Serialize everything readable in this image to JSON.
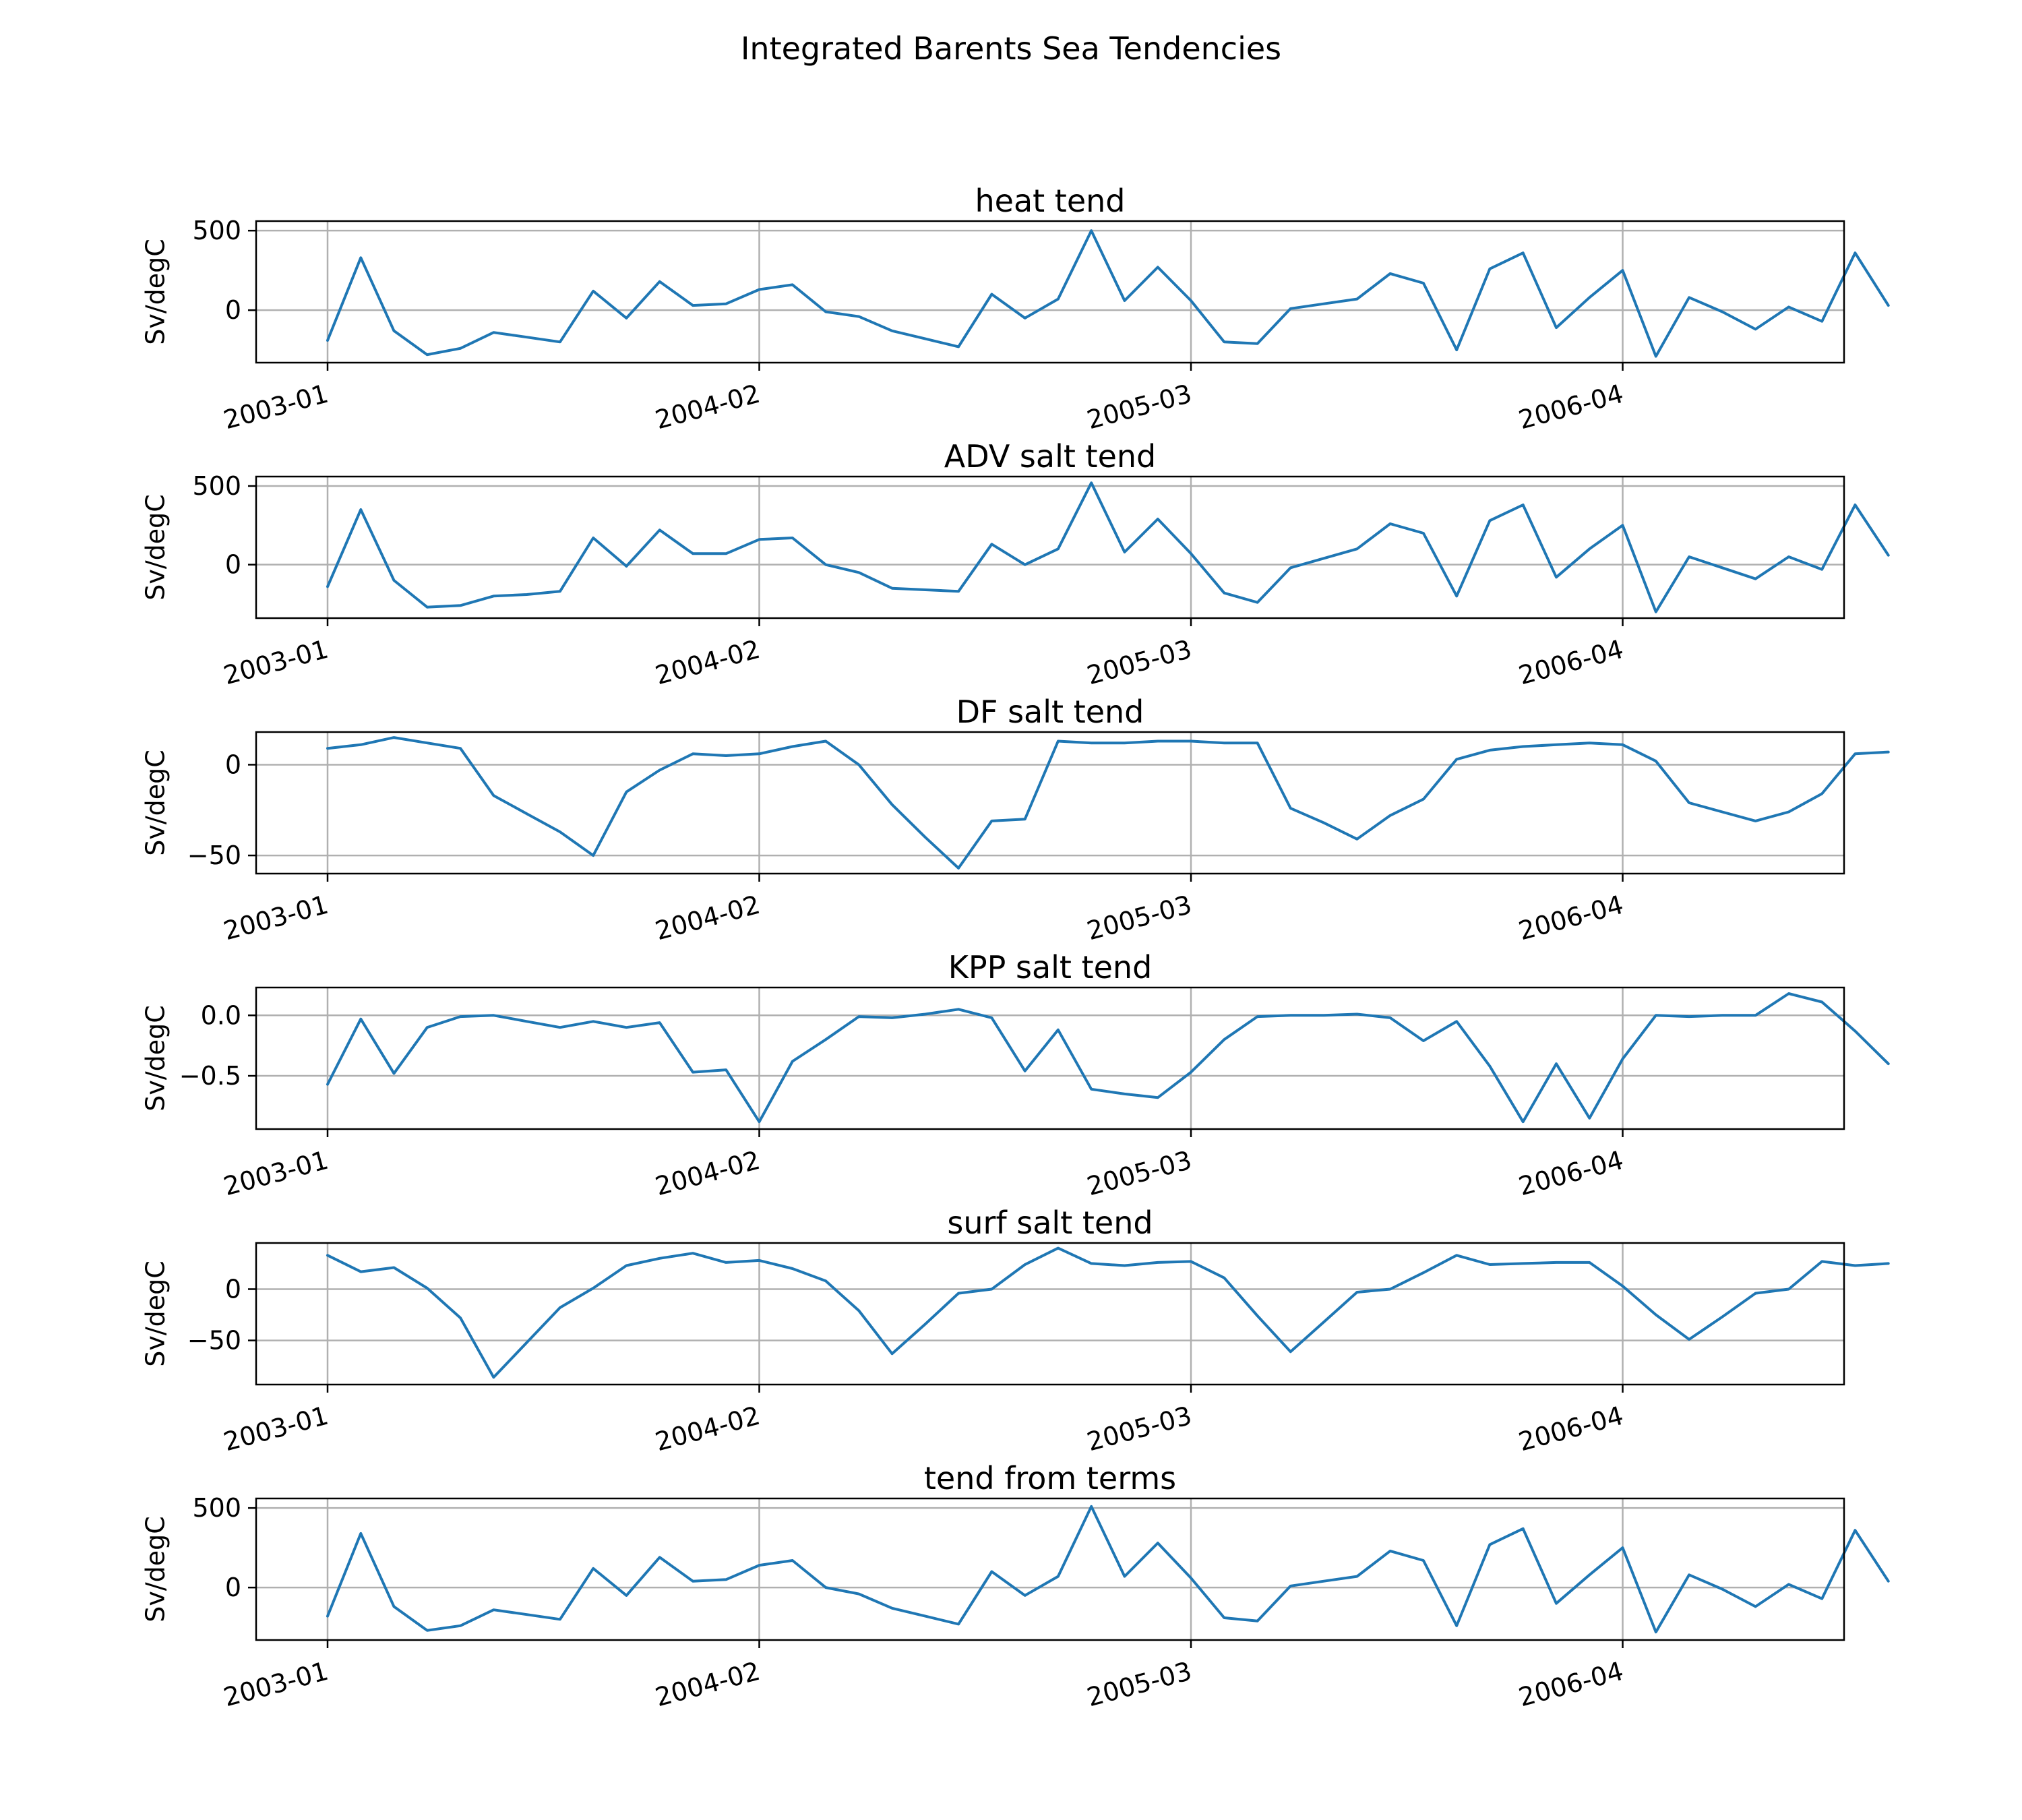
{
  "figure": {
    "title": "Integrated Barents Sea Tendencies"
  },
  "style": {
    "line_color": "#1f77b4",
    "grid_color": "#b0b0b0",
    "frame_color": "#000000",
    "background": "#ffffff"
  },
  "x_ticks": [
    "2003-01",
    "2004-02",
    "2005-03",
    "2006-04"
  ],
  "chart_data": [
    {
      "type": "line",
      "title": "heat tend",
      "xlabel": "",
      "ylabel": "Sv/degC",
      "grid": true,
      "x": [
        "2003-01",
        "2003-02",
        "2003-03",
        "2003-04",
        "2003-05",
        "2003-06",
        "2003-07",
        "2003-08",
        "2003-09",
        "2003-10",
        "2003-11",
        "2003-12",
        "2004-01",
        "2004-02",
        "2004-03",
        "2004-04",
        "2004-05",
        "2004-06",
        "2004-07",
        "2004-08",
        "2004-09",
        "2004-10",
        "2004-11",
        "2004-12",
        "2005-01",
        "2005-02",
        "2005-03",
        "2005-04",
        "2005-05",
        "2005-06",
        "2005-07",
        "2005-08",
        "2005-09",
        "2005-10",
        "2005-11",
        "2005-12",
        "2006-01",
        "2006-02",
        "2006-03",
        "2006-04",
        "2006-05",
        "2006-06",
        "2006-07",
        "2006-08",
        "2006-09",
        "2006-10",
        "2006-11",
        "2006-12"
      ],
      "y": [
        -190,
        330,
        -130,
        -280,
        -240,
        -140,
        -170,
        -200,
        120,
        -50,
        180,
        30,
        40,
        130,
        160,
        -10,
        -40,
        -130,
        -180,
        -230,
        100,
        -50,
        70,
        500,
        60,
        270,
        60,
        -200,
        -210,
        10,
        40,
        70,
        230,
        170,
        -250,
        260,
        360,
        -110,
        80,
        250,
        -290,
        80,
        -10,
        -120,
        20,
        -70,
        360,
        30
      ],
      "ylim": [
        -330,
        560
      ],
      "yticks": [
        {
          "value": 0,
          "label": "0"
        },
        {
          "value": 500,
          "label": "500"
        }
      ]
    },
    {
      "type": "line",
      "title": "ADV salt tend",
      "xlabel": "",
      "ylabel": "Sv/degC",
      "grid": true,
      "x": [
        "2003-01",
        "2003-02",
        "2003-03",
        "2003-04",
        "2003-05",
        "2003-06",
        "2003-07",
        "2003-08",
        "2003-09",
        "2003-10",
        "2003-11",
        "2003-12",
        "2004-01",
        "2004-02",
        "2004-03",
        "2004-04",
        "2004-05",
        "2004-06",
        "2004-07",
        "2004-08",
        "2004-09",
        "2004-10",
        "2004-11",
        "2004-12",
        "2005-01",
        "2005-02",
        "2005-03",
        "2005-04",
        "2005-05",
        "2005-06",
        "2005-07",
        "2005-08",
        "2005-09",
        "2005-10",
        "2005-11",
        "2005-12",
        "2006-01",
        "2006-02",
        "2006-03",
        "2006-04",
        "2006-05",
        "2006-06",
        "2006-07",
        "2006-08",
        "2006-09",
        "2006-10",
        "2006-11",
        "2006-12"
      ],
      "y": [
        -140,
        350,
        -100,
        -270,
        -260,
        -200,
        -190,
        -170,
        170,
        -10,
        220,
        70,
        70,
        160,
        170,
        0,
        -50,
        -150,
        -160,
        -170,
        130,
        0,
        100,
        520,
        80,
        290,
        70,
        -180,
        -240,
        -20,
        40,
        100,
        260,
        200,
        -200,
        280,
        380,
        -80,
        100,
        250,
        -300,
        50,
        -20,
        -90,
        50,
        -30,
        380,
        60
      ],
      "ylim": [
        -340,
        560
      ],
      "yticks": [
        {
          "value": 0,
          "label": "0"
        },
        {
          "value": 500,
          "label": "500"
        }
      ]
    },
    {
      "type": "line",
      "title": "DF salt tend",
      "xlabel": "",
      "ylabel": "Sv/degC",
      "grid": true,
      "x": [
        "2003-01",
        "2003-02",
        "2003-03",
        "2003-04",
        "2003-05",
        "2003-06",
        "2003-07",
        "2003-08",
        "2003-09",
        "2003-10",
        "2003-11",
        "2003-12",
        "2004-01",
        "2004-02",
        "2004-03",
        "2004-04",
        "2004-05",
        "2004-06",
        "2004-07",
        "2004-08",
        "2004-09",
        "2004-10",
        "2004-11",
        "2004-12",
        "2005-01",
        "2005-02",
        "2005-03",
        "2005-04",
        "2005-05",
        "2005-06",
        "2005-07",
        "2005-08",
        "2005-09",
        "2005-10",
        "2005-11",
        "2005-12",
        "2006-01",
        "2006-02",
        "2006-03",
        "2006-04",
        "2006-05",
        "2006-06",
        "2006-07",
        "2006-08",
        "2006-09",
        "2006-10",
        "2006-11",
        "2006-12"
      ],
      "y": [
        9,
        11,
        15,
        12,
        9,
        -17,
        -27,
        -37,
        -50,
        -15,
        -3,
        6,
        5,
        6,
        10,
        13,
        0,
        -22,
        -40,
        -57,
        -31,
        -30,
        13,
        12,
        12,
        13,
        13,
        12,
        12,
        -24,
        -32,
        -41,
        -28,
        -19,
        3,
        8,
        10,
        11,
        12,
        11,
        2,
        -21,
        -26,
        -31,
        -26,
        -16,
        6,
        7
      ],
      "ylim": [
        -60,
        18
      ],
      "yticks": [
        {
          "value": -50,
          "label": "−50"
        },
        {
          "value": 0,
          "label": "0"
        }
      ]
    },
    {
      "type": "line",
      "title": "KPP salt tend",
      "xlabel": "",
      "ylabel": "Sv/degC",
      "grid": true,
      "x": [
        "2003-01",
        "2003-02",
        "2003-03",
        "2003-04",
        "2003-05",
        "2003-06",
        "2003-07",
        "2003-08",
        "2003-09",
        "2003-10",
        "2003-11",
        "2003-12",
        "2004-01",
        "2004-02",
        "2004-03",
        "2004-04",
        "2004-05",
        "2004-06",
        "2004-07",
        "2004-08",
        "2004-09",
        "2004-10",
        "2004-11",
        "2004-12",
        "2005-01",
        "2005-02",
        "2005-03",
        "2005-04",
        "2005-05",
        "2005-06",
        "2005-07",
        "2005-08",
        "2005-09",
        "2005-10",
        "2005-11",
        "2005-12",
        "2006-01",
        "2006-02",
        "2006-03",
        "2006-04",
        "2006-05",
        "2006-06",
        "2006-07",
        "2006-08",
        "2006-09",
        "2006-10",
        "2006-11",
        "2006-12"
      ],
      "y": [
        -0.57,
        -0.03,
        -0.48,
        -0.1,
        -0.01,
        0.0,
        -0.05,
        -0.1,
        -0.05,
        -0.1,
        -0.06,
        -0.47,
        -0.45,
        -0.88,
        -0.38,
        -0.2,
        -0.01,
        -0.02,
        0.01,
        0.05,
        -0.02,
        -0.46,
        -0.12,
        -0.61,
        -0.65,
        -0.68,
        -0.47,
        -0.2,
        -0.01,
        0.0,
        0.0,
        0.01,
        -0.02,
        -0.21,
        -0.05,
        -0.42,
        -0.88,
        -0.4,
        -0.85,
        -0.36,
        0.0,
        -0.01,
        0.0,
        0.0,
        0.18,
        0.11,
        -0.13,
        -0.4
      ],
      "ylim": [
        -0.94,
        0.23
      ],
      "yticks": [
        {
          "value": -0.5,
          "label": "−0.5"
        },
        {
          "value": 0.0,
          "label": "0.0"
        }
      ]
    },
    {
      "type": "line",
      "title": "surf salt tend",
      "xlabel": "",
      "ylabel": "Sv/degC",
      "grid": true,
      "x": [
        "2003-01",
        "2003-02",
        "2003-03",
        "2003-04",
        "2003-05",
        "2003-06",
        "2003-07",
        "2003-08",
        "2003-09",
        "2003-10",
        "2003-11",
        "2003-12",
        "2004-01",
        "2004-02",
        "2004-03",
        "2004-04",
        "2004-05",
        "2004-06",
        "2004-07",
        "2004-08",
        "2004-09",
        "2004-10",
        "2004-11",
        "2004-12",
        "2005-01",
        "2005-02",
        "2005-03",
        "2005-04",
        "2005-05",
        "2005-06",
        "2005-07",
        "2005-08",
        "2005-09",
        "2005-10",
        "2005-11",
        "2005-12",
        "2006-01",
        "2006-02",
        "2006-03",
        "2006-04",
        "2006-05",
        "2006-06",
        "2006-07",
        "2006-08",
        "2006-09",
        "2006-10",
        "2006-11",
        "2006-12"
      ],
      "y": [
        33,
        17,
        21,
        1,
        -28,
        -86,
        -52,
        -18,
        1,
        23,
        30,
        35,
        26,
        28,
        20,
        8,
        -21,
        -63,
        -34,
        -4,
        0,
        24,
        40,
        25,
        23,
        26,
        27,
        11,
        -26,
        -61,
        -32,
        -3,
        0,
        16,
        33,
        24,
        25,
        26,
        26,
        3,
        -25,
        -49,
        -27,
        -4,
        0,
        27,
        23,
        25
      ],
      "ylim": [
        -93,
        45
      ],
      "yticks": [
        {
          "value": -50,
          "label": "−50"
        },
        {
          "value": 0,
          "label": "0"
        }
      ]
    },
    {
      "type": "line",
      "title": "tend from terms",
      "xlabel": "",
      "ylabel": "Sv/degC",
      "grid": true,
      "x": [
        "2003-01",
        "2003-02",
        "2003-03",
        "2003-04",
        "2003-05",
        "2003-06",
        "2003-07",
        "2003-08",
        "2003-09",
        "2003-10",
        "2003-11",
        "2003-12",
        "2004-01",
        "2004-02",
        "2004-03",
        "2004-04",
        "2004-05",
        "2004-06",
        "2004-07",
        "2004-08",
        "2004-09",
        "2004-10",
        "2004-11",
        "2004-12",
        "2005-01",
        "2005-02",
        "2005-03",
        "2005-04",
        "2005-05",
        "2005-06",
        "2005-07",
        "2005-08",
        "2005-09",
        "2005-10",
        "2005-11",
        "2005-12",
        "2006-01",
        "2006-02",
        "2006-03",
        "2006-04",
        "2006-05",
        "2006-06",
        "2006-07",
        "2006-08",
        "2006-09",
        "2006-10",
        "2006-11",
        "2006-12"
      ],
      "y": [
        -180,
        340,
        -120,
        -270,
        -240,
        -140,
        -170,
        -200,
        120,
        -50,
        190,
        40,
        50,
        140,
        170,
        0,
        -40,
        -130,
        -180,
        -230,
        100,
        -50,
        70,
        510,
        70,
        280,
        60,
        -190,
        -210,
        10,
        40,
        70,
        230,
        170,
        -240,
        270,
        370,
        -100,
        80,
        250,
        -280,
        80,
        -10,
        -120,
        20,
        -70,
        360,
        40
      ],
      "ylim": [
        -330,
        560
      ],
      "yticks": [
        {
          "value": 0,
          "label": "0"
        },
        {
          "value": 500,
          "label": "500"
        }
      ]
    }
  ]
}
